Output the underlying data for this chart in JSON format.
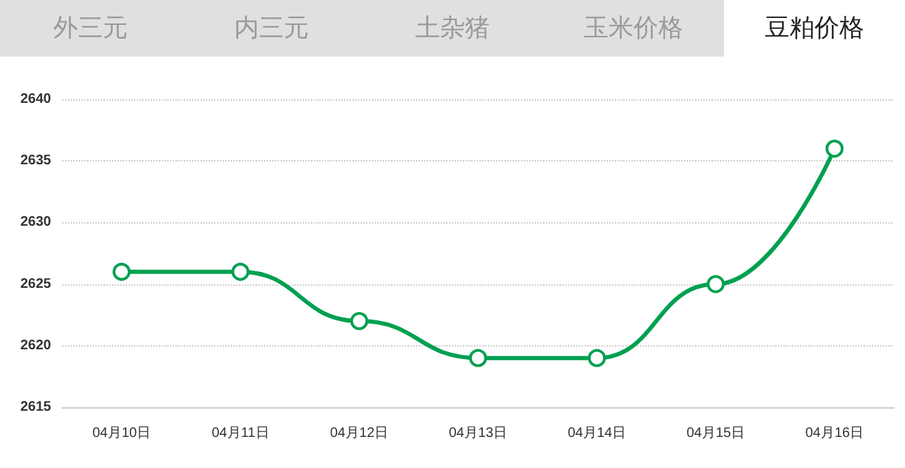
{
  "chart_data": {
    "type": "line",
    "title": "豆粕价格",
    "annotations": [
      "外三元",
      "内三元",
      "土杂猪",
      "玉米价格"
    ],
    "categories": [
      "04月10日",
      "04月11日",
      "04月12日",
      "04月13日",
      "04月14日",
      "04月15日",
      "04月16日"
    ],
    "series": [
      {
        "color": "#00a050",
        "values": [
          2626,
          2626,
          2622,
          2619,
          2619,
          2625,
          2636
        ]
      }
    ],
    "ylim": [
      2615,
      2640
    ],
    "yticks": [
      2615,
      2620,
      2625,
      2630,
      2635,
      2640
    ],
    "grid": "y",
    "marker": "circle",
    "line_style": "solid"
  }
}
